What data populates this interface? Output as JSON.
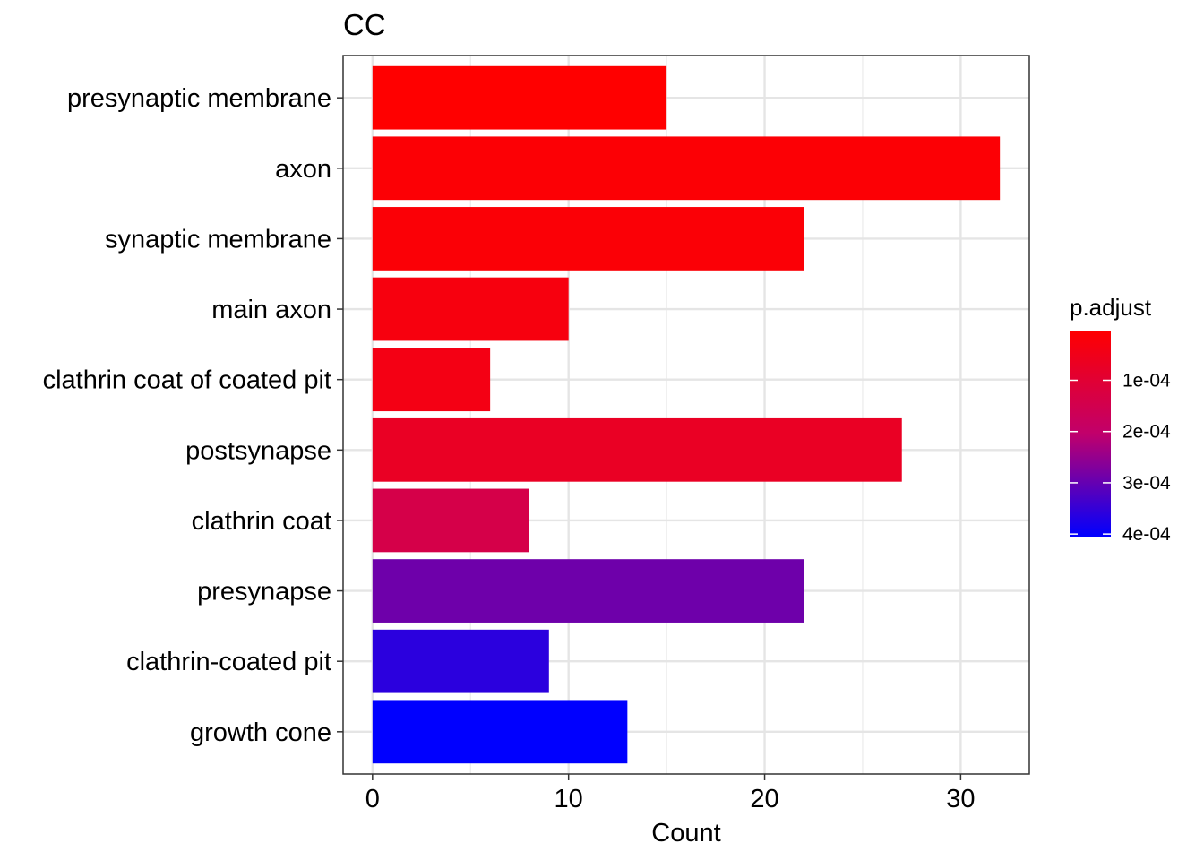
{
  "chart_data": {
    "type": "bar",
    "orientation": "horizontal",
    "title": "CC",
    "xlabel": "Count",
    "ylabel": "",
    "xlim": [
      -1.5,
      33.5
    ],
    "x_ticks": [
      0,
      10,
      20,
      30
    ],
    "x_minor_ticks": [
      5,
      15,
      25
    ],
    "grid": true,
    "categories": [
      "presynaptic membrane",
      "axon",
      "synaptic membrane",
      "main axon",
      "clathrin coat of coated pit",
      "postsynapse",
      "clathrin coat",
      "presynapse",
      "clathrin-coated pit",
      "growth cone"
    ],
    "values": [
      15,
      32,
      22,
      10,
      6,
      27,
      8,
      22,
      9,
      13
    ],
    "p_adjust": [
      3e-06,
      1.2e-05,
      1.5e-05,
      3e-05,
      4e-05,
      7e-05,
      0.00014,
      0.00029,
      0.00036,
      0.000405
    ],
    "legend": {
      "title": "p.adjust",
      "position": "right",
      "range": [
        3e-06,
        0.000405
      ],
      "ticks": [
        0.0001,
        0.0002,
        0.0003,
        0.0004
      ],
      "tick_labels": [
        "1e-04",
        "2e-04",
        "3e-04",
        "4e-04"
      ],
      "color_low": "#FF0000",
      "color_high": "#0000FF"
    }
  }
}
